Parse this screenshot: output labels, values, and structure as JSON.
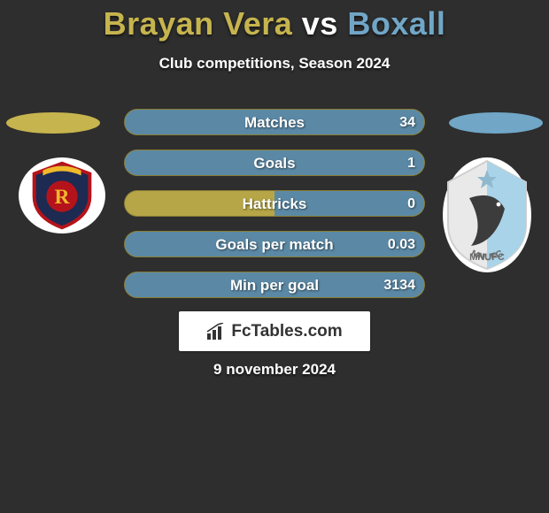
{
  "background_color": "#2e2e2e",
  "title": {
    "player1": "Brayan Vera",
    "vs": "vs",
    "player2": "Boxall",
    "player1_color": "#c6b44e",
    "vs_color": "#ffffff",
    "player2_color": "#71a6c7",
    "fontsize": 36
  },
  "subtitle": "Club competitions, Season 2024",
  "side_ellipse": {
    "left_color": "#c6b44e",
    "right_color": "#71a6c7",
    "width": 106,
    "height": 24
  },
  "badges": {
    "left": {
      "bg": "#ffffff",
      "shield_fill": "#1d2a52",
      "shield_border": "#b5131b",
      "accent": "#f0b92a",
      "letter": "R"
    },
    "right": {
      "bg": "#ffffff",
      "blue": "#a9d3e8",
      "dark": "#3c3c3c",
      "text": "MNUFC"
    }
  },
  "bars": {
    "left_color": "#b6a647",
    "right_color": "#5b89a5",
    "track_color": "#b6a647",
    "label_color": "#ffffff",
    "fontsize": 17,
    "rows": [
      {
        "label": "Matches",
        "left_val": "",
        "right_val": "34",
        "left_pct": 0,
        "right_pct": 100
      },
      {
        "label": "Goals",
        "left_val": "",
        "right_val": "1",
        "left_pct": 0,
        "right_pct": 100
      },
      {
        "label": "Hattricks",
        "left_val": "",
        "right_val": "0",
        "left_pct": 50,
        "right_pct": 50
      },
      {
        "label": "Goals per match",
        "left_val": "",
        "right_val": "0.03",
        "left_pct": 0,
        "right_pct": 100
      },
      {
        "label": "Min per goal",
        "left_val": "",
        "right_val": "3134",
        "left_pct": 0,
        "right_pct": 100
      }
    ]
  },
  "watermark": {
    "text": "FcTables.com",
    "bg": "#ffffff",
    "text_color": "#333333",
    "icon_color": "#333333",
    "fontsize": 19
  },
  "date": "9 november 2024"
}
